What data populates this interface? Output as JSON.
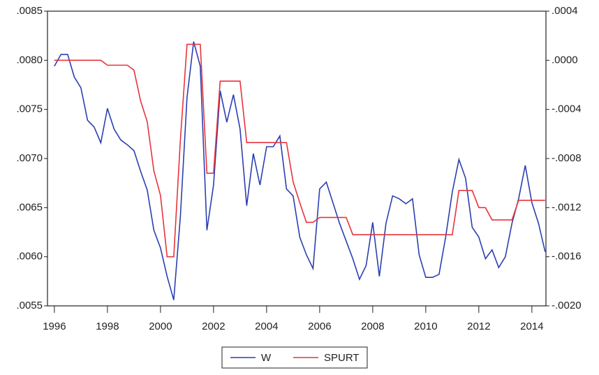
{
  "chart_data": {
    "type": "line",
    "x": [
      1996,
      1996.25,
      1996.5,
      1996.75,
      1997,
      1997.25,
      1997.5,
      1997.75,
      1998,
      1998.25,
      1998.5,
      1998.75,
      1999,
      1999.25,
      1999.5,
      1999.75,
      2000,
      2000.25,
      2000.5,
      2000.75,
      2001,
      2001.25,
      2001.5,
      2001.75,
      2002,
      2002.25,
      2002.5,
      2002.75,
      2003,
      2003.25,
      2003.5,
      2003.75,
      2004,
      2004.25,
      2004.5,
      2004.75,
      2005,
      2005.25,
      2005.5,
      2005.75,
      2006,
      2006.25,
      2006.5,
      2006.75,
      2007,
      2007.25,
      2007.5,
      2007.75,
      2008,
      2008.25,
      2008.5,
      2008.75,
      2009,
      2009.25,
      2009.5,
      2009.75,
      2010,
      2010.25,
      2010.5,
      2010.75,
      2011,
      2011.25,
      2011.5,
      2011.75,
      2012,
      2012.25,
      2012.5,
      2012.75,
      2013,
      2013.25,
      2013.5,
      2013.75,
      2014,
      2014.25,
      2014.5
    ],
    "series": [
      {
        "name": "W",
        "color": "#2b3fb0",
        "values": [
          0.00794,
          0.00806,
          0.00806,
          0.00783,
          0.00772,
          0.00739,
          0.00732,
          0.00716,
          0.00751,
          0.0073,
          0.00719,
          0.00714,
          0.00708,
          0.00687,
          0.00668,
          0.00627,
          0.00609,
          0.0058,
          0.00556,
          0.00641,
          0.00762,
          0.00819,
          0.00794,
          0.00627,
          0.00673,
          0.00769,
          0.00737,
          0.00765,
          0.0073,
          0.00652,
          0.00705,
          0.00673,
          0.00712,
          0.00712,
          0.00723,
          0.00669,
          0.00662,
          0.0062,
          0.00602,
          0.00588,
          0.00669,
          0.00676,
          0.00655,
          0.00634,
          0.00616,
          0.00598,
          0.00577,
          0.00591,
          0.00635,
          0.0058,
          0.00634,
          0.00662,
          0.00659,
          0.00654,
          0.00659,
          0.00602,
          0.00579,
          0.00579,
          0.00582,
          0.0062,
          0.00666,
          0.00699,
          0.0068,
          0.0063,
          0.0062,
          0.00598,
          0.00607,
          0.00589,
          0.006,
          0.00634,
          0.00659,
          0.00693,
          0.00655,
          0.00634,
          0.00605
        ]
      },
      {
        "name": "SPURT",
        "color": "#e8333c",
        "axis": "y2",
        "values": [
          0,
          0,
          0,
          0,
          0,
          0,
          0,
          0,
          -4e-05,
          -4e-05,
          -4e-05,
          -4e-05,
          -8e-05,
          -0.00033,
          -0.0005,
          -0.0009,
          -0.0011,
          -0.0016,
          -0.0016,
          -0.00065,
          0.00013,
          0.00013,
          0.00013,
          -0.00092,
          -0.00092,
          -0.00017,
          -0.00017,
          -0.00017,
          -0.00017,
          -0.00067,
          -0.00067,
          -0.00067,
          -0.00067,
          -0.00067,
          -0.00067,
          -0.00067,
          -0.00099,
          -0.00116,
          -0.00132,
          -0.00132,
          -0.00128,
          -0.00128,
          -0.00128,
          -0.00128,
          -0.00128,
          -0.00142,
          -0.00142,
          -0.00142,
          -0.00142,
          -0.00142,
          -0.00142,
          -0.00142,
          -0.00142,
          -0.00142,
          -0.00142,
          -0.00142,
          -0.00142,
          -0.00142,
          -0.00142,
          -0.00142,
          -0.00142,
          -0.00106,
          -0.00106,
          -0.00106,
          -0.0012,
          -0.0012,
          -0.0013,
          -0.0013,
          -0.0013,
          -0.0013,
          -0.00114,
          -0.00114,
          -0.00114,
          -0.00114,
          -0.00114
        ]
      }
    ],
    "xlim": [
      1995.74,
      2014.53
    ],
    "xticks": [
      1996,
      1998,
      2000,
      2002,
      2004,
      2006,
      2008,
      2010,
      2012,
      2014
    ],
    "ylim": [
      0.0055,
      0.0085
    ],
    "yticks": [
      {
        "value": 0.0055,
        "label": ".0055"
      },
      {
        "value": 0.006,
        "label": ".0060"
      },
      {
        "value": 0.0065,
        "label": ".0065"
      },
      {
        "value": 0.007,
        "label": ".0070"
      },
      {
        "value": 0.0075,
        "label": ".0075"
      },
      {
        "value": 0.008,
        "label": ".0080"
      },
      {
        "value": 0.0085,
        "label": ".0085"
      }
    ],
    "y2lim": [
      -0.002,
      0.0004
    ],
    "y2ticks": [
      {
        "value": -0.002,
        "label": "-.0020"
      },
      {
        "value": -0.0016,
        "label": "-.0016"
      },
      {
        "value": -0.0012,
        "label": "-.0012"
      },
      {
        "value": -0.0008,
        "label": "-.0008"
      },
      {
        "value": -0.0004,
        "label": "-.0004"
      },
      {
        "value": 0,
        "label": ".0000"
      },
      {
        "value": 0.0004,
        "label": ".0004"
      }
    ],
    "grid": false,
    "legend": "bottom"
  }
}
